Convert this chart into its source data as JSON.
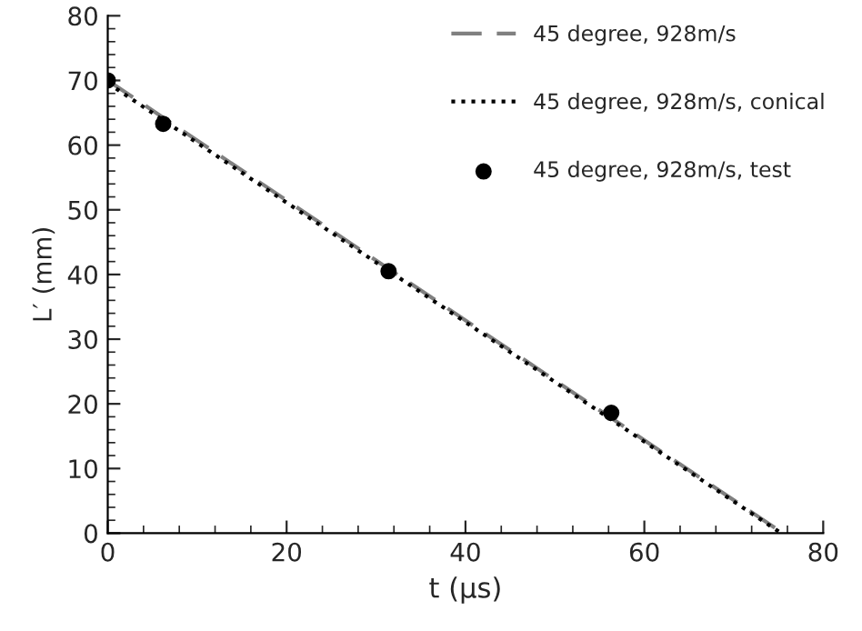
{
  "chart_data": {
    "type": "line",
    "xlabel": "t (µs)",
    "ylabel": "L′ (mm)",
    "xlim": [
      0,
      80
    ],
    "xticks": [
      0,
      20,
      40,
      60,
      80
    ],
    "ylim": [
      0,
      80
    ],
    "yticks": [
      0,
      10,
      20,
      30,
      40,
      50,
      60,
      70,
      80
    ],
    "grid": false,
    "legend": "top right",
    "series": [
      {
        "name": "45 degree, 928m/s",
        "line_style": "dashed",
        "marker": "none",
        "color": "#808080",
        "x": [
          0,
          75.5
        ],
        "values": [
          70,
          0
        ]
      },
      {
        "name": "45 degree, 928m/s, conical",
        "line_style": "dotted",
        "marker": "none",
        "color": "#000000",
        "x": [
          0,
          75.3
        ],
        "values": [
          69.6,
          0
        ]
      },
      {
        "name": "45 degree, 928m/s, test",
        "type": "scatter",
        "marker": "circle",
        "color": "#000000",
        "x": [
          0,
          6.2,
          31.4,
          56.3
        ],
        "values": [
          70,
          63.3,
          40.5,
          18.6
        ]
      }
    ]
  }
}
